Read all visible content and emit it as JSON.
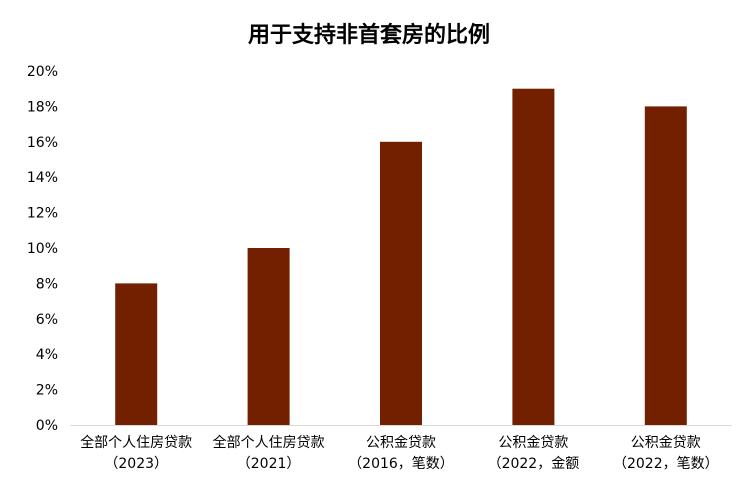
{
  "chart_data": {
    "type": "bar",
    "title": "用于支持非首套房的比例",
    "categories": [
      [
        "全部个人住房贷款",
        "（2023）"
      ],
      [
        "全部个人住房贷款",
        "（2021）"
      ],
      [
        "公积金贷款",
        "（2016，笔数）"
      ],
      [
        "公积金贷款",
        "（2022，金额"
      ],
      [
        "公积金贷款",
        "（2022，笔数）"
      ]
    ],
    "values": [
      8,
      10,
      16,
      19,
      18
    ],
    "value_unit": "%",
    "ylim": [
      0,
      20
    ],
    "yticks": [
      "0%",
      "2%",
      "4%",
      "6%",
      "8%",
      "10%",
      "12%",
      "14%",
      "16%",
      "18%",
      "20%"
    ],
    "xlabel": "",
    "ylabel": "",
    "grid": false,
    "bar_color": "#722000"
  }
}
